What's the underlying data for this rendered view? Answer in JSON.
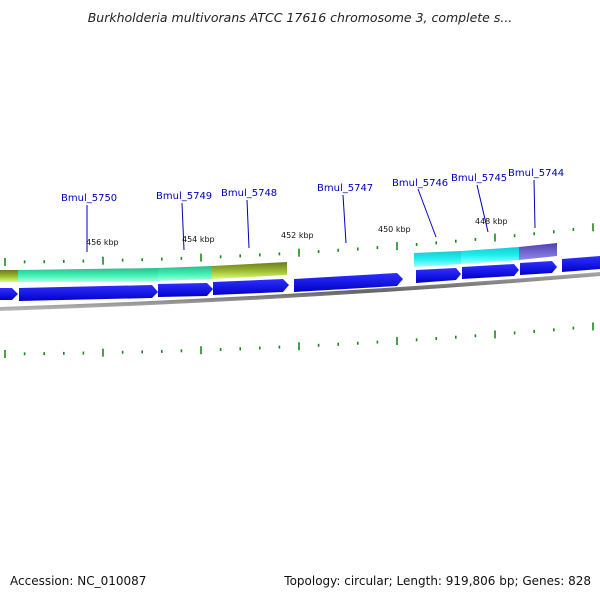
{
  "title": "Burkholderia multivorans ATCC 17616 chromosome 3, complete s...",
  "footer": {
    "accession": "Accession: NC_010087",
    "summary": "Topology: circular; Length: 919,806 bp; Genes: 828"
  },
  "genes": [
    {
      "name": "Bmul_5750"
    },
    {
      "name": "Bmul_5749"
    },
    {
      "name": "Bmul_5748"
    },
    {
      "name": "Bmul_5747"
    },
    {
      "name": "Bmul_5746"
    },
    {
      "name": "Bmul_5745"
    },
    {
      "name": "Bmul_5744"
    }
  ],
  "scale_labels": [
    "456 kbp",
    "454 kbp",
    "452 kbp",
    "450 kbp",
    "448 kbp"
  ],
  "colors": {
    "gene_label": "#0000b8",
    "cds_blue": "#0a0aee",
    "tick_green": "#1a8a1a",
    "backbone": "#888888",
    "teal": "#33e6a6",
    "olive": "#7a8a2a",
    "cyan": "#1ee8e8",
    "purple": "#6a5ad0"
  }
}
